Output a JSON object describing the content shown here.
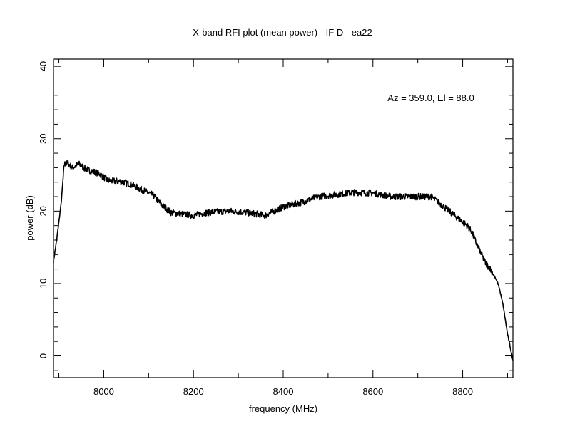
{
  "chart_data": {
    "type": "line",
    "title": "X-band RFI plot (mean power) - IF D - ea22",
    "xlabel": "frequency (MHz)",
    "ylabel": "power (dB)",
    "annotation": "Az = 359.0, El = 88.0",
    "xlim": [
      7888,
      8912
    ],
    "ylim": [
      -3,
      41
    ],
    "xticks": [
      8000,
      8200,
      8400,
      8600,
      8800
    ],
    "xtick_labels": [
      "8000",
      "8200",
      "8400",
      "8600",
      "8800"
    ],
    "yticks": [
      0,
      10,
      20,
      30,
      40
    ],
    "ytick_labels": [
      "0",
      "10",
      "20",
      "30",
      "40"
    ],
    "grid": false,
    "series": [
      {
        "name": "mean power",
        "color": "#000000",
        "x": [
          7888,
          7895,
          7905,
          7912,
          7920,
          7930,
          7945,
          7960,
          7990,
          8010,
          8040,
          8060,
          8090,
          8110,
          8130,
          8150,
          8200,
          8230,
          8280,
          8320,
          8360,
          8400,
          8440,
          8480,
          8520,
          8560,
          8600,
          8640,
          8680,
          8730,
          8760,
          8790,
          8810,
          8820,
          8830,
          8850,
          8865,
          8880,
          8890,
          8900,
          8906,
          8912
        ],
        "y": [
          13,
          16,
          21,
          26.5,
          26.6,
          26,
          26.5,
          25.8,
          25.2,
          24.2,
          24.1,
          23.7,
          22.8,
          22.2,
          20.8,
          19.8,
          19.4,
          19.8,
          20.0,
          19.8,
          19.4,
          20.6,
          21.2,
          22.0,
          22.3,
          22.6,
          22.5,
          22.0,
          22.0,
          22.0,
          20.5,
          19.0,
          18.0,
          17.2,
          15.6,
          12.9,
          11.7,
          9.8,
          7.0,
          3.0,
          1.2,
          -0.7
        ]
      }
    ]
  }
}
